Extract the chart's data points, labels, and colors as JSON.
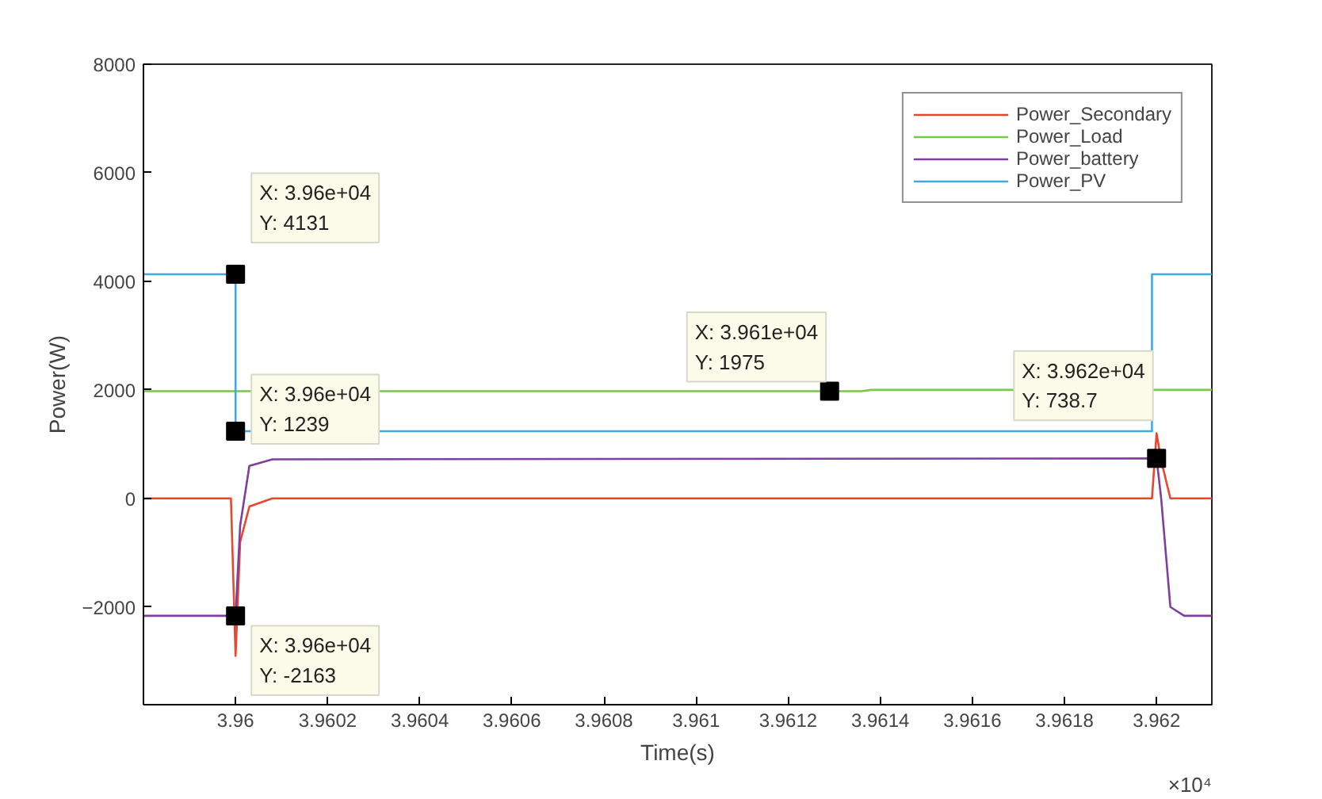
{
  "chart_data": {
    "type": "line",
    "xlabel": "Time(s)",
    "ylabel": "Power(W)",
    "xlim": [
      3.9598,
      3.96212
    ],
    "xticks": [
      3.96,
      3.9602,
      3.9604,
      3.9606,
      3.9608,
      3.961,
      3.9612,
      3.9614,
      3.9616,
      3.9618,
      3.962
    ],
    "ylim": [
      -3800,
      8000
    ],
    "yticks": [
      -2000,
      0,
      2000,
      4000,
      6000,
      8000
    ],
    "grid": false,
    "legend": "top right",
    "line_style": "solid",
    "marker": "none",
    "series": [
      {
        "name": "Power_Secondary",
        "color": "#e8472f",
        "x": [
          3.9598,
          3.95999,
          3.96,
          3.96001,
          3.96003,
          3.96008,
          3.96199,
          3.962,
          3.96201,
          3.96203,
          3.96212
        ],
        "values": [
          0,
          0,
          -2900,
          -800,
          -150,
          0,
          0,
          1200,
          700,
          0,
          0
        ]
      },
      {
        "name": "Power_Load",
        "color": "#77c84a",
        "x": [
          3.9598,
          3.96136,
          3.96138,
          3.96212
        ],
        "values": [
          1975,
          1975,
          2000,
          2000
        ]
      },
      {
        "name": "Power_battery",
        "color": "#7e3f9e",
        "x": [
          3.9598,
          3.96,
          3.96001,
          3.96003,
          3.96008,
          3.962,
          3.96201,
          3.96203,
          3.96206,
          3.96212
        ],
        "values": [
          -2163,
          -2163,
          -500,
          600,
          720,
          738.7,
          0,
          -2000,
          -2163,
          -2163
        ]
      },
      {
        "name": "Power_PV",
        "color": "#3fa9e0",
        "x": [
          3.9598,
          3.96,
          3.96,
          3.96199,
          3.96199,
          3.96212
        ],
        "values": [
          4131,
          4131,
          1239,
          1239,
          4131,
          4131
        ]
      }
    ],
    "annotations": [
      {
        "text": "X: 3.96e+04\nY: 4131",
        "x": 3.96,
        "y": 4131
      },
      {
        "text": "X: 3.96e+04\nY: 1239",
        "x": 3.96,
        "y": 1239
      },
      {
        "text": "X: 3.96e+04\nY: -2163",
        "x": 3.96,
        "y": -2163
      },
      {
        "text": "X: 3.961e+04\nY: 1975",
        "x": 3.96129,
        "y": 1975
      },
      {
        "text": "X: 3.962e+04\nY: 738.7",
        "x": 3.962,
        "y": 738.7
      },
      "×10⁴"
    ]
  }
}
